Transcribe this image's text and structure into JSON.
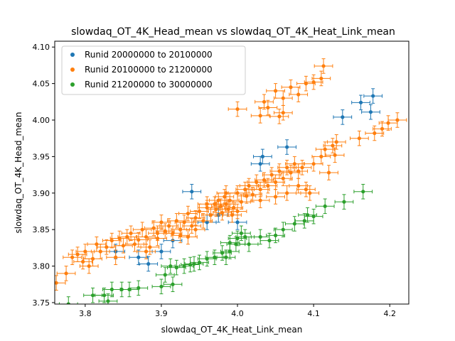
{
  "chart_data": {
    "type": "scatter",
    "title": "slowdaq_OT_4K_Head_mean vs slowdaq_OT_4K_Heat_Link_mean",
    "xlabel": "slowdaq_OT_4K_Heat_Link_mean",
    "ylabel": "slowdaq_OT_4K_Head_mean",
    "xlim": [
      3.76,
      4.225
    ],
    "ylim": [
      3.748,
      4.108
    ],
    "xticks": [
      3.8,
      3.9,
      4.0,
      4.1,
      4.2
    ],
    "xtick_labels": [
      "3.8",
      "3.9",
      "4.0",
      "4.1",
      "4.2"
    ],
    "yticks": [
      3.75,
      3.8,
      3.85,
      3.9,
      3.95,
      4.0,
      4.05,
      4.1
    ],
    "ytick_labels": [
      "3.75",
      "3.80",
      "3.85",
      "3.90",
      "3.95",
      "4.00",
      "4.05",
      "4.10"
    ],
    "legend_position": "top-left",
    "error_bars": {
      "x": 0.012,
      "y": 0.01
    },
    "series": [
      {
        "name": "Runid 20000000 to 20100000",
        "color": "#1f77b4",
        "points": [
          [
            3.84,
            3.82
          ],
          [
            3.87,
            3.812
          ],
          [
            3.883,
            3.803
          ],
          [
            3.9,
            3.82
          ],
          [
            3.915,
            3.835
          ],
          [
            3.94,
            3.902
          ],
          [
            3.96,
            3.86
          ],
          [
            3.975,
            3.87
          ],
          [
            4.0,
            3.86
          ],
          [
            4.03,
            3.94
          ],
          [
            4.033,
            3.95
          ],
          [
            4.065,
            3.963
          ],
          [
            4.138,
            4.004
          ],
          [
            4.162,
            4.024
          ],
          [
            4.175,
            4.011
          ],
          [
            4.178,
            4.033
          ]
        ]
      },
      {
        "name": "Runid 20100000 to 21200000",
        "color": "#ff7f0e",
        "points": [
          [
            3.762,
            3.777
          ],
          [
            3.775,
            3.79
          ],
          [
            3.783,
            3.812
          ],
          [
            3.79,
            3.816
          ],
          [
            3.797,
            3.806
          ],
          [
            3.8,
            3.82
          ],
          [
            3.805,
            3.8
          ],
          [
            3.81,
            3.81
          ],
          [
            3.815,
            3.83
          ],
          [
            3.82,
            3.82
          ],
          [
            3.828,
            3.826
          ],
          [
            3.835,
            3.835
          ],
          [
            3.84,
            3.812
          ],
          [
            3.845,
            3.838
          ],
          [
            3.85,
            3.828
          ],
          [
            3.855,
            3.84
          ],
          [
            3.86,
            3.845
          ],
          [
            3.865,
            3.83
          ],
          [
            3.87,
            3.836
          ],
          [
            3.875,
            3.85
          ],
          [
            3.88,
            3.84
          ],
          [
            3.885,
            3.826
          ],
          [
            3.89,
            3.852
          ],
          [
            3.895,
            3.845
          ],
          [
            3.9,
            3.86
          ],
          [
            3.905,
            3.848
          ],
          [
            3.91,
            3.855
          ],
          [
            3.915,
            3.845
          ],
          [
            3.92,
            3.862
          ],
          [
            3.925,
            3.85
          ],
          [
            3.93,
            3.86
          ],
          [
            3.935,
            3.872
          ],
          [
            3.94,
            3.855
          ],
          [
            3.945,
            3.866
          ],
          [
            3.95,
            3.875
          ],
          [
            3.955,
            3.862
          ],
          [
            3.96,
            3.88
          ],
          [
            3.965,
            3.87
          ],
          [
            3.97,
            3.885
          ],
          [
            3.972,
            3.878
          ],
          [
            3.975,
            3.89
          ],
          [
            3.978,
            3.882
          ],
          [
            3.98,
            3.873
          ],
          [
            3.983,
            3.895
          ],
          [
            3.985,
            3.885
          ],
          [
            3.988,
            3.878
          ],
          [
            3.99,
            3.89
          ],
          [
            3.993,
            3.87
          ],
          [
            3.995,
            3.88
          ],
          [
            4.0,
            3.9
          ],
          [
            4.005,
            3.888
          ],
          [
            4.01,
            3.905
          ],
          [
            4.012,
            3.896
          ],
          [
            4.015,
            3.91
          ],
          [
            4.02,
            3.898
          ],
          [
            4.025,
            3.915
          ],
          [
            4.03,
            3.905
          ],
          [
            4.035,
            3.918
          ],
          [
            4.04,
            3.91
          ],
          [
            4.045,
            3.925
          ],
          [
            4.05,
            3.915
          ],
          [
            4.055,
            3.93
          ],
          [
            4.06,
            3.92
          ],
          [
            4.065,
            3.935
          ],
          [
            4.07,
            3.928
          ],
          [
            4.075,
            3.94
          ],
          [
            4.08,
            3.93
          ],
          [
            4.085,
            3.935
          ],
          [
            4.03,
            3.89
          ],
          [
            4.05,
            3.895
          ],
          [
            4.065,
            3.9
          ],
          [
            4.08,
            3.91
          ],
          [
            4.09,
            3.905
          ],
          [
            4.095,
            3.9
          ],
          [
            4.1,
            3.94
          ],
          [
            4.11,
            3.95
          ],
          [
            4.115,
            3.96
          ],
          [
            4.125,
            3.965
          ],
          [
            4.13,
            3.97
          ],
          [
            4.12,
            3.928
          ],
          [
            4.128,
            3.952
          ],
          [
            4.16,
            3.975
          ],
          [
            4.18,
            3.982
          ],
          [
            4.19,
            3.988
          ],
          [
            4.198,
            3.996
          ],
          [
            4.21,
            4.0
          ],
          [
            4.05,
            4.04
          ],
          [
            4.06,
            4.03
          ],
          [
            4.07,
            4.045
          ],
          [
            4.08,
            4.035
          ],
          [
            4.09,
            4.05
          ],
          [
            4.1,
            4.052
          ],
          [
            4.11,
            4.057
          ],
          [
            4.113,
            4.074
          ],
          [
            4.035,
            4.025
          ],
          [
            4.04,
            4.017
          ],
          [
            4.055,
            4.005
          ],
          [
            4.06,
            4.01
          ],
          [
            4.0,
            4.015
          ],
          [
            4.03,
            4.006
          ],
          [
            3.985,
            3.9
          ],
          [
            3.96,
            3.885
          ],
          [
            4.0,
            3.875
          ],
          [
            3.945,
            3.85
          ],
          [
            3.935,
            3.84
          ],
          [
            3.925,
            3.842
          ],
          [
            3.895,
            3.838
          ],
          [
            3.88,
            3.82
          ]
        ]
      },
      {
        "name": "Runid 21200000 to 30000000",
        "color": "#2ca02c",
        "points": [
          [
            3.778,
            3.748
          ],
          [
            3.81,
            3.76
          ],
          [
            3.825,
            3.76
          ],
          [
            3.83,
            3.752
          ],
          [
            3.835,
            3.768
          ],
          [
            3.848,
            3.768
          ],
          [
            3.858,
            3.768
          ],
          [
            3.87,
            3.77
          ],
          [
            3.9,
            3.772
          ],
          [
            3.905,
            3.788
          ],
          [
            3.912,
            3.8
          ],
          [
            3.92,
            3.798
          ],
          [
            3.93,
            3.8
          ],
          [
            3.938,
            3.802
          ],
          [
            3.943,
            3.803
          ],
          [
            3.95,
            3.805
          ],
          [
            3.96,
            3.81
          ],
          [
            3.97,
            3.812
          ],
          [
            3.98,
            3.818
          ],
          [
            3.99,
            3.82
          ],
          [
            3.998,
            3.83
          ],
          [
            4.0,
            3.838
          ],
          [
            4.005,
            3.845
          ],
          [
            4.01,
            3.84
          ],
          [
            4.015,
            3.83
          ],
          [
            4.03,
            3.84
          ],
          [
            4.042,
            3.835
          ],
          [
            4.05,
            3.842
          ],
          [
            4.06,
            3.85
          ],
          [
            4.075,
            3.858
          ],
          [
            4.088,
            3.862
          ],
          [
            4.092,
            3.87
          ],
          [
            4.1,
            3.868
          ],
          [
            4.115,
            3.882
          ],
          [
            4.14,
            3.888
          ],
          [
            4.165,
            3.902
          ],
          [
            3.915,
            3.775
          ],
          [
            3.985,
            3.812
          ],
          [
            3.99,
            3.832
          ]
        ]
      }
    ]
  }
}
